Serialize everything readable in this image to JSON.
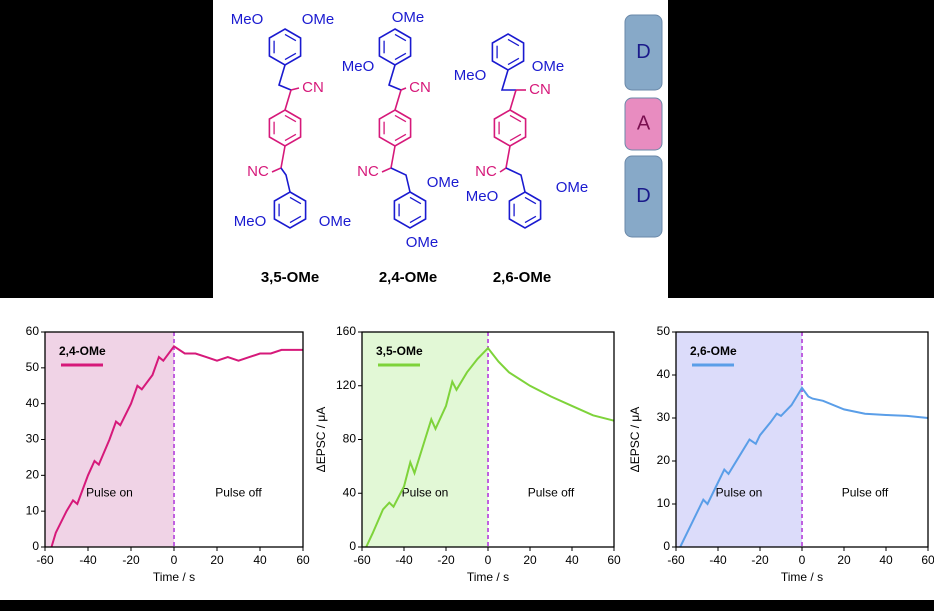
{
  "molecules": [
    {
      "name": "3,5-OMe",
      "labels": [
        "MeO",
        "OMe",
        "CN",
        "NC",
        "MeO",
        "OMe"
      ]
    },
    {
      "name": "2,4-OMe",
      "labels": [
        "OMe",
        "MeO",
        "CN",
        "NC",
        "OMe",
        "OMe"
      ]
    },
    {
      "name": "2,6-OMe",
      "labels": [
        "MeO",
        "OMe",
        "CN",
        "NC",
        "MeO",
        "OMe"
      ]
    }
  ],
  "blocks": [
    "D",
    "A",
    "D"
  ],
  "chart_data": [
    {
      "type": "line",
      "xlabel": "Time / s",
      "xlim": [
        -60,
        60
      ],
      "xticks": [
        -60,
        -40,
        -20,
        0,
        20,
        40,
        60
      ],
      "ylim": [
        0,
        60
      ],
      "yticks": [
        0,
        10,
        20,
        30,
        40,
        50,
        60
      ],
      "shade": [
        -60,
        0
      ],
      "shade_color": "#f0d3e6",
      "annotations": [
        "Pulse on",
        "Pulse off"
      ],
      "x": [
        -57,
        -55,
        -50,
        -47,
        -45,
        -40,
        -37,
        -35,
        -30,
        -27,
        -25,
        -20,
        -17,
        -15,
        -10,
        -7,
        -5,
        0,
        5,
        10,
        15,
        20,
        25,
        30,
        35,
        40,
        45,
        50,
        55,
        60
      ],
      "series": [
        {
          "name": "2,4-OMe",
          "color": "#d6197a",
          "values": [
            0,
            4,
            10,
            13,
            12,
            20,
            24,
            23,
            30,
            35,
            34,
            40,
            45,
            44,
            48,
            53,
            52,
            56,
            54,
            54,
            53,
            52,
            53,
            52,
            53,
            54,
            54,
            55,
            55,
            55
          ]
        }
      ]
    },
    {
      "type": "line",
      "xlabel": "Time / s",
      "ylabel": "ΔEPSC / μA",
      "xlim": [
        -60,
        60
      ],
      "xticks": [
        -60,
        -40,
        -20,
        0,
        20,
        40,
        60
      ],
      "ylim": [
        0,
        160
      ],
      "yticks": [
        0,
        40,
        80,
        120,
        160
      ],
      "shade": [
        -60,
        0
      ],
      "shade_color": "#e2f8d6",
      "annotations": [
        "Pulse on",
        "Pulse off"
      ],
      "x": [
        -58,
        -55,
        -50,
        -47,
        -45,
        -40,
        -37,
        -35,
        -30,
        -27,
        -25,
        -20,
        -17,
        -15,
        -10,
        -5,
        0,
        5,
        10,
        20,
        30,
        40,
        50,
        60
      ],
      "series": [
        {
          "name": "3,5-OMe",
          "color": "#7ed33a",
          "values": [
            0,
            10,
            28,
            33,
            30,
            45,
            63,
            55,
            80,
            95,
            88,
            105,
            123,
            117,
            130,
            140,
            148,
            138,
            130,
            120,
            112,
            105,
            98,
            94
          ]
        }
      ]
    },
    {
      "type": "line",
      "xlabel": "Time / s",
      "ylabel": "ΔEPSC / μA",
      "xlim": [
        -60,
        60
      ],
      "xticks": [
        -60,
        -40,
        -20,
        0,
        20,
        40,
        60
      ],
      "ylim": [
        0,
        50
      ],
      "yticks": [
        0,
        10,
        20,
        30,
        40,
        50
      ],
      "shade": [
        -60,
        0
      ],
      "shade_color": "#dcdcfa",
      "annotations": [
        "Pulse on",
        "Pulse off"
      ],
      "x": [
        -58,
        -55,
        -50,
        -47,
        -45,
        -40,
        -37,
        -35,
        -30,
        -25,
        -22,
        -20,
        -15,
        -12,
        -10,
        -5,
        0,
        3,
        5,
        10,
        20,
        30,
        40,
        50,
        60
      ],
      "series": [
        {
          "name": "2,6-OMe",
          "color": "#5a9ee8",
          "values": [
            0,
            3,
            8,
            11,
            10,
            15,
            18,
            17,
            21,
            25,
            24,
            26,
            29,
            31,
            30.5,
            33,
            37,
            35,
            34.5,
            34,
            32,
            31,
            30.7,
            30.5,
            30
          ]
        }
      ]
    }
  ]
}
